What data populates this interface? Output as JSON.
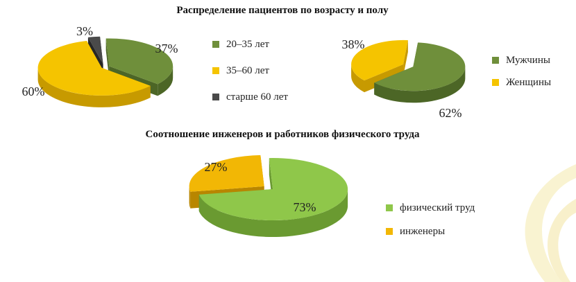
{
  "colors": {
    "olive": "#6f8f3b",
    "olive_dark": "#4c6626",
    "yellow": "#f5c400",
    "yellow_dark": "#c79a00",
    "gray": "#4a4a4a",
    "gray_dark": "#262626",
    "lightgreen": "#8fc74a",
    "lightgreen_dark": "#6a9a31",
    "amber": "#f2b705",
    "amber_dark": "#b88600"
  },
  "chart_data": [
    {
      "type": "pie",
      "title": "Распределение пациентов по возрасту и полу",
      "categories": [
        "20–35 лет",
        "35–60 лет",
        "старше 60 лет"
      ],
      "values": [
        37,
        60,
        3
      ],
      "value_labels": [
        "37%",
        "60%",
        "3%"
      ],
      "legend": [
        "20–35 лет",
        "35–60 лет",
        "старше 60 лет"
      ],
      "legend_position": "right",
      "colors": [
        "olive",
        "yellow",
        "gray"
      ]
    },
    {
      "type": "pie",
      "title": "",
      "categories": [
        "Мужчины",
        "Женщины"
      ],
      "values": [
        62,
        38
      ],
      "value_labels": [
        "62%",
        "38%"
      ],
      "legend": [
        "Мужчины",
        "Женщины"
      ],
      "legend_position": "right",
      "colors": [
        "olive",
        "yellow"
      ]
    },
    {
      "type": "pie",
      "title": "Соотношение инженеров и работников физического труда",
      "categories": [
        "физический труд",
        "инженеры"
      ],
      "values": [
        73,
        27
      ],
      "value_labels": [
        "73%",
        "27%"
      ],
      "legend": [
        "физический труд",
        "инженеры"
      ],
      "legend_position": "right",
      "colors": [
        "lightgreen",
        "amber"
      ]
    }
  ]
}
